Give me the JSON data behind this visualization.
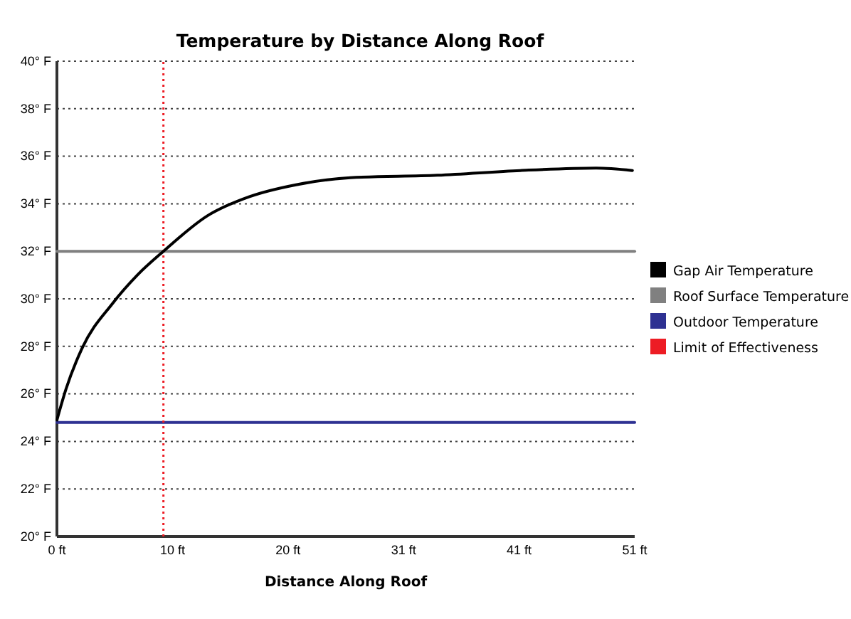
{
  "chart_data": {
    "type": "line",
    "title": "Temperature by Distance Along Roof",
    "xlabel": "Distance Along Roof",
    "xlim": [
      0,
      51
    ],
    "xticks": [
      {
        "value": 0,
        "label": "0 ft"
      },
      {
        "value": 10.2,
        "label": "10 ft"
      },
      {
        "value": 20.4,
        "label": "20 ft"
      },
      {
        "value": 30.6,
        "label": "31 ft"
      },
      {
        "value": 40.8,
        "label": "41 ft"
      },
      {
        "value": 51,
        "label": "51 ft"
      }
    ],
    "ylim": [
      20,
      40
    ],
    "yticks": [
      {
        "value": 20,
        "label": "20° F"
      },
      {
        "value": 22,
        "label": "22° F"
      },
      {
        "value": 24,
        "label": "24° F"
      },
      {
        "value": 26,
        "label": "26° F"
      },
      {
        "value": 28,
        "label": "28° F"
      },
      {
        "value": 30,
        "label": "30° F"
      },
      {
        "value": 32,
        "label": "32° F"
      },
      {
        "value": 34,
        "label": "34° F"
      },
      {
        "value": 36,
        "label": "36° F"
      },
      {
        "value": 38,
        "label": "38° F"
      },
      {
        "value": 40,
        "label": "40° F"
      }
    ],
    "grid": "y",
    "legend": "right",
    "series": [
      {
        "name": "Gap Air Temperature",
        "color": "#000000",
        "x": [
          0,
          0.8,
          2.2,
          4.9,
          7.1,
          9.4,
          13.3,
          17.0,
          21.1,
          25.9,
          33.6,
          40.9,
          47.6,
          50.8
        ],
        "values": [
          24.9,
          26.2,
          27.9,
          29.8,
          31.0,
          32,
          33.5,
          34.3,
          34.8,
          35.1,
          35.2,
          35.4,
          35.5,
          35.4
        ]
      },
      {
        "name": "Roof Surface Temperature",
        "color": "#808080",
        "x": [
          0,
          51
        ],
        "values": [
          32,
          32
        ]
      },
      {
        "name": "Outdoor Temperature",
        "color": "#2e3192",
        "x": [
          0,
          51
        ],
        "values": [
          24.8,
          24.8
        ]
      },
      {
        "name": "Limit of Effectiveness",
        "color": "#ed1c24",
        "line_style": "dotted",
        "x": [
          9.4,
          9.4
        ],
        "values": [
          20,
          40
        ]
      }
    ]
  }
}
